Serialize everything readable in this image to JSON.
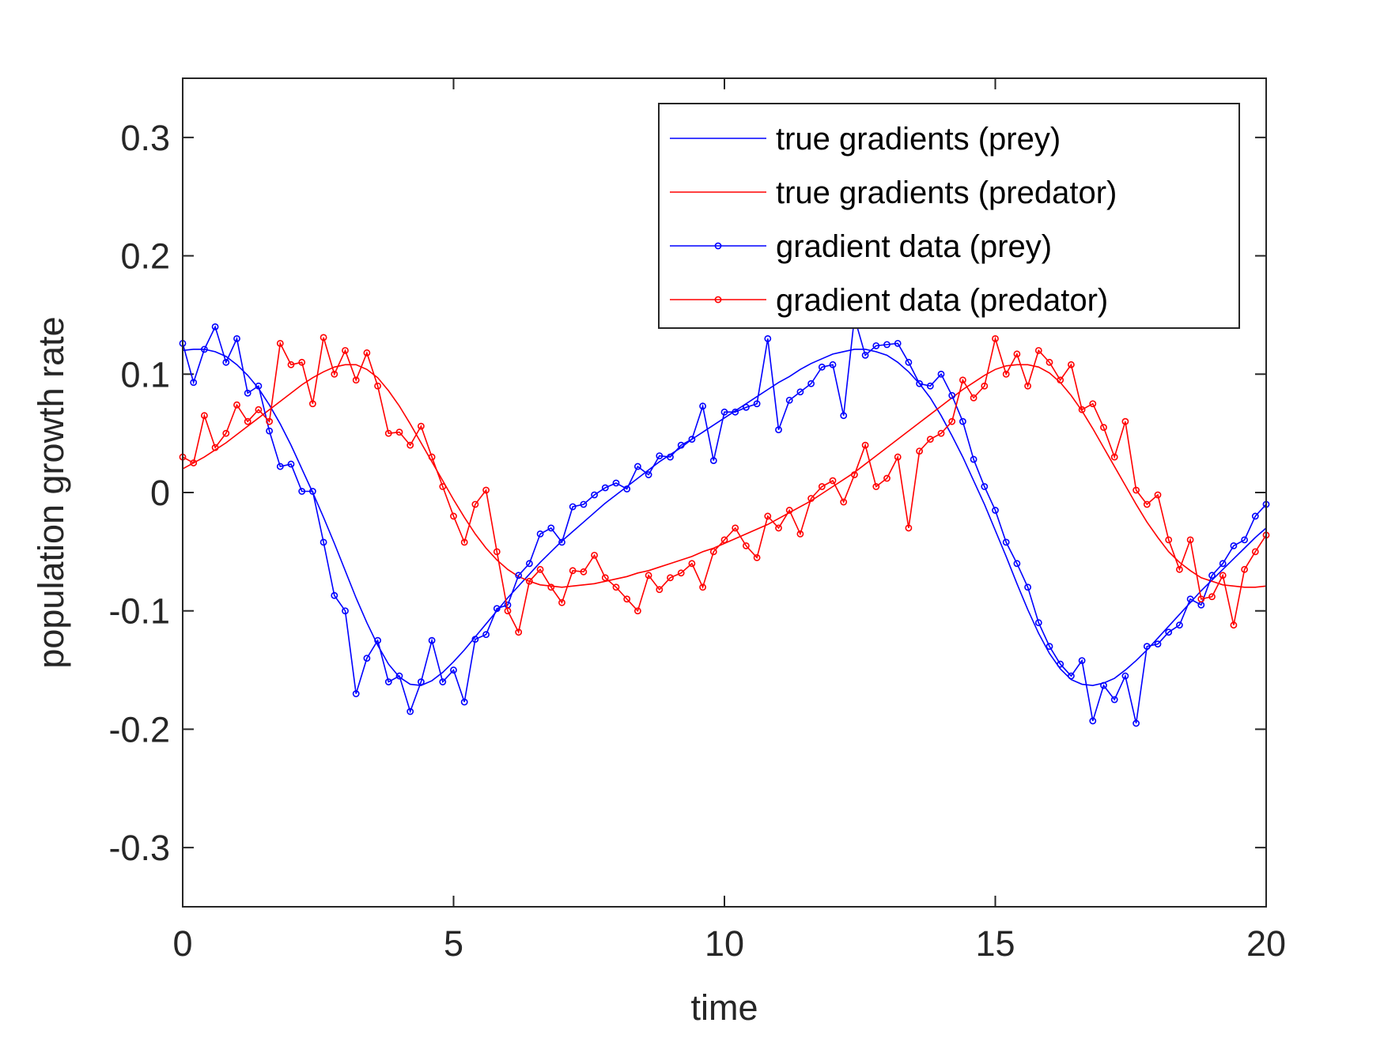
{
  "chart_data": {
    "type": "line",
    "xlabel": "time",
    "ylabel": "population growth rate",
    "xlim": [
      0,
      20
    ],
    "ylim": [
      -0.35,
      0.35
    ],
    "xticks": [
      0,
      5,
      10,
      15,
      20
    ],
    "yticks": [
      -0.3,
      -0.2,
      -0.1,
      0,
      0.1,
      0.2,
      0.3
    ],
    "grid": false,
    "legend": "northeast",
    "x": [
      0,
      0.2,
      0.4,
      0.6,
      0.8,
      1,
      1.2,
      1.4,
      1.6,
      1.8,
      2,
      2.2,
      2.4,
      2.6,
      2.8,
      3,
      3.2,
      3.4,
      3.6,
      3.8,
      4,
      4.2,
      4.4,
      4.6,
      4.8,
      5,
      5.2,
      5.4,
      5.6,
      5.8,
      6,
      6.2,
      6.4,
      6.6,
      6.8,
      7,
      7.2,
      7.4,
      7.6,
      7.8,
      8,
      8.2,
      8.4,
      8.6,
      8.8,
      9,
      9.2,
      9.4,
      9.6,
      9.8,
      10,
      10.2,
      10.4,
      10.6,
      10.8,
      11,
      11.2,
      11.4,
      11.6,
      11.8,
      12,
      12.2,
      12.4,
      12.6,
      12.8,
      13,
      13.2,
      13.4,
      13.6,
      13.8,
      14,
      14.2,
      14.4,
      14.6,
      14.8,
      15,
      15.2,
      15.4,
      15.6,
      15.8,
      16,
      16.2,
      16.4,
      16.6,
      16.8,
      17,
      17.2,
      17.4,
      17.6,
      17.8,
      18,
      18.2,
      18.4,
      18.6,
      18.8,
      19,
      19.2,
      19.4,
      19.6,
      19.8,
      20
    ],
    "series": [
      {
        "name": "true gradients (prey)",
        "color": "#0000ff",
        "marker": false,
        "values": [
          0.12,
          0.121,
          0.121,
          0.119,
          0.115,
          0.108,
          0.099,
          0.088,
          0.074,
          0.058,
          0.04,
          0.02,
          0.0,
          -0.021,
          -0.043,
          -0.066,
          -0.089,
          -0.11,
          -0.129,
          -0.145,
          -0.156,
          -0.162,
          -0.163,
          -0.159,
          -0.152,
          -0.143,
          -0.133,
          -0.122,
          -0.111,
          -0.1,
          -0.089,
          -0.079,
          -0.069,
          -0.059,
          -0.05,
          -0.041,
          -0.033,
          -0.025,
          -0.017,
          -0.009,
          -0.002,
          0.005,
          0.012,
          0.019,
          0.026,
          0.032,
          0.038,
          0.045,
          0.051,
          0.057,
          0.063,
          0.069,
          0.075,
          0.081,
          0.087,
          0.093,
          0.098,
          0.104,
          0.109,
          0.113,
          0.117,
          0.119,
          0.121,
          0.121,
          0.119,
          0.116,
          0.11,
          0.102,
          0.092,
          0.08,
          0.065,
          0.048,
          0.03,
          0.01,
          -0.01,
          -0.032,
          -0.054,
          -0.077,
          -0.099,
          -0.119,
          -0.136,
          -0.149,
          -0.158,
          -0.162,
          -0.163,
          -0.161,
          -0.157,
          -0.15,
          -0.142,
          -0.133,
          -0.123,
          -0.113,
          -0.103,
          -0.093,
          -0.083,
          -0.074,
          -0.065,
          -0.056,
          -0.047,
          -0.038,
          -0.03
        ]
      },
      {
        "name": "true gradients (predator)",
        "color": "#ff0000",
        "marker": false,
        "values": [
          0.02,
          0.025,
          0.03,
          0.036,
          0.042,
          0.049,
          0.056,
          0.063,
          0.07,
          0.077,
          0.084,
          0.091,
          0.097,
          0.102,
          0.106,
          0.108,
          0.108,
          0.104,
          0.097,
          0.086,
          0.073,
          0.058,
          0.042,
          0.026,
          0.01,
          -0.006,
          -0.021,
          -0.035,
          -0.047,
          -0.057,
          -0.065,
          -0.071,
          -0.075,
          -0.078,
          -0.079,
          -0.08,
          -0.079,
          -0.078,
          -0.077,
          -0.075,
          -0.073,
          -0.071,
          -0.068,
          -0.066,
          -0.063,
          -0.06,
          -0.057,
          -0.054,
          -0.05,
          -0.047,
          -0.043,
          -0.039,
          -0.035,
          -0.031,
          -0.027,
          -0.022,
          -0.017,
          -0.012,
          -0.007,
          -0.001,
          0.005,
          0.011,
          0.017,
          0.024,
          0.031,
          0.038,
          0.045,
          0.052,
          0.059,
          0.066,
          0.073,
          0.08,
          0.087,
          0.093,
          0.099,
          0.104,
          0.107,
          0.108,
          0.108,
          0.106,
          0.101,
          0.093,
          0.082,
          0.069,
          0.054,
          0.038,
          0.022,
          0.006,
          -0.01,
          -0.025,
          -0.038,
          -0.05,
          -0.059,
          -0.066,
          -0.072,
          -0.075,
          -0.078,
          -0.079,
          -0.08,
          -0.08,
          -0.079
        ]
      },
      {
        "name": "gradient data (prey)",
        "color": "#0000ff",
        "marker": true,
        "values": [
          0.126,
          0.093,
          0.121,
          0.14,
          0.11,
          0.13,
          0.084,
          0.09,
          0.052,
          0.022,
          0.024,
          0.001,
          0.001,
          -0.042,
          -0.087,
          -0.1,
          -0.17,
          -0.14,
          -0.125,
          -0.16,
          -0.155,
          -0.185,
          -0.16,
          -0.125,
          -0.16,
          -0.15,
          -0.177,
          -0.124,
          -0.12,
          -0.098,
          -0.095,
          -0.07,
          -0.06,
          -0.035,
          -0.03,
          -0.042,
          -0.012,
          -0.01,
          -0.002,
          0.004,
          0.008,
          0.003,
          0.022,
          0.015,
          0.031,
          0.03,
          0.04,
          0.045,
          0.073,
          0.027,
          0.068,
          0.068,
          0.072,
          0.075,
          0.13,
          0.053,
          0.078,
          0.085,
          0.092,
          0.106,
          0.108,
          0.065,
          0.148,
          0.116,
          0.124,
          0.125,
          0.126,
          0.11,
          0.092,
          0.09,
          0.1,
          0.082,
          0.06,
          0.028,
          0.005,
          -0.015,
          -0.042,
          -0.06,
          -0.08,
          -0.11,
          -0.13,
          -0.145,
          -0.155,
          -0.142,
          -0.193,
          -0.163,
          -0.175,
          -0.155,
          -0.195,
          -0.13,
          -0.128,
          -0.118,
          -0.112,
          -0.09,
          -0.095,
          -0.07,
          -0.06,
          -0.045,
          -0.04,
          -0.02,
          -0.01
        ]
      },
      {
        "name": "gradient data (predator)",
        "color": "#ff0000",
        "marker": true,
        "values": [
          0.03,
          0.025,
          0.065,
          0.038,
          0.05,
          0.074,
          0.06,
          0.07,
          0.06,
          0.126,
          0.108,
          0.11,
          0.075,
          0.131,
          0.1,
          0.12,
          0.095,
          0.118,
          0.09,
          0.05,
          0.051,
          0.04,
          0.056,
          0.03,
          0.005,
          -0.02,
          -0.042,
          -0.01,
          0.002,
          -0.05,
          -0.1,
          -0.118,
          -0.075,
          -0.065,
          -0.08,
          -0.093,
          -0.066,
          -0.067,
          -0.053,
          -0.072,
          -0.08,
          -0.09,
          -0.1,
          -0.07,
          -0.082,
          -0.072,
          -0.068,
          -0.06,
          -0.08,
          -0.05,
          -0.04,
          -0.03,
          -0.045,
          -0.055,
          -0.02,
          -0.03,
          -0.015,
          -0.035,
          -0.005,
          0.005,
          0.01,
          -0.008,
          0.015,
          0.04,
          0.005,
          0.012,
          0.03,
          -0.03,
          0.035,
          0.045,
          0.05,
          0.06,
          0.095,
          0.08,
          0.09,
          0.13,
          0.1,
          0.117,
          0.09,
          0.12,
          0.11,
          0.095,
          0.108,
          0.07,
          0.075,
          0.055,
          0.03,
          0.06,
          0.002,
          -0.01,
          -0.002,
          -0.04,
          -0.065,
          -0.04,
          -0.09,
          -0.088,
          -0.07,
          -0.112,
          -0.065,
          -0.05,
          -0.036
        ]
      }
    ]
  }
}
